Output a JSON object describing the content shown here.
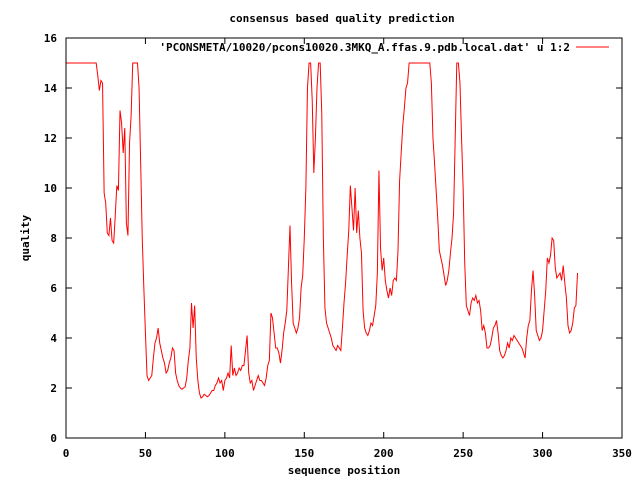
{
  "chart_data": {
    "type": "line",
    "title": "consensus based quality prediction",
    "xlabel": "sequence position",
    "ylabel": "quality",
    "xlim": [
      0,
      350
    ],
    "ylim": [
      0,
      16
    ],
    "xticks": [
      0,
      50,
      100,
      150,
      200,
      250,
      300,
      350
    ],
    "yticks": [
      0,
      2,
      4,
      6,
      8,
      10,
      12,
      14,
      16
    ],
    "grid": false,
    "legend_position": "top-right",
    "series": [
      {
        "name": "'PCONSMETA/10020/pcons10020.3MKQ_A.ffas.9.pdb.local.dat' u 1:2",
        "color": "#ff0000",
        "points": [
          [
            0,
            15
          ],
          [
            5,
            15
          ],
          [
            10,
            15
          ],
          [
            15,
            15
          ],
          [
            18,
            15
          ],
          [
            19,
            15
          ],
          [
            20,
            14.5
          ],
          [
            21,
            13.9
          ],
          [
            22,
            14.3
          ],
          [
            23,
            14.2
          ],
          [
            24,
            9.8
          ],
          [
            25,
            9.4
          ],
          [
            26,
            8.2
          ],
          [
            27,
            8.1
          ],
          [
            28,
            8.8
          ],
          [
            29,
            7.9
          ],
          [
            30,
            7.8
          ],
          [
            31,
            8.9
          ],
          [
            32,
            10.1
          ],
          [
            33,
            9.9
          ],
          [
            34,
            13.1
          ],
          [
            35,
            12.6
          ],
          [
            36,
            11.4
          ],
          [
            37,
            12.4
          ],
          [
            38,
            8.6
          ],
          [
            39,
            8.1
          ],
          [
            40,
            11.8
          ],
          [
            41,
            12.9
          ],
          [
            42,
            15
          ],
          [
            43,
            15
          ],
          [
            44,
            15
          ],
          [
            45,
            15
          ],
          [
            46,
            14
          ],
          [
            47,
            11
          ],
          [
            48,
            8
          ],
          [
            49,
            6
          ],
          [
            50,
            4.2
          ],
          [
            51,
            2.5
          ],
          [
            52,
            2.3
          ],
          [
            53,
            2.4
          ],
          [
            54,
            2.5
          ],
          [
            55,
            3.2
          ],
          [
            56,
            3.8
          ],
          [
            57,
            4
          ],
          [
            58,
            4.4
          ],
          [
            59,
            3.8
          ],
          [
            60,
            3.5
          ],
          [
            61,
            3.2
          ],
          [
            62,
            3
          ],
          [
            63,
            2.6
          ],
          [
            64,
            2.7
          ],
          [
            65,
            3
          ],
          [
            66,
            3.2
          ],
          [
            67,
            3.6
          ],
          [
            68,
            3.5
          ],
          [
            69,
            2.6
          ],
          [
            70,
            2.3
          ],
          [
            71,
            2.1
          ],
          [
            72,
            2
          ],
          [
            73,
            1.95
          ],
          [
            74,
            2
          ],
          [
            75,
            2.05
          ],
          [
            76,
            2.4
          ],
          [
            77,
            3.1
          ],
          [
            78,
            3.6
          ],
          [
            79,
            5.4
          ],
          [
            80,
            4.4
          ],
          [
            81,
            5.3
          ],
          [
            82,
            3.2
          ],
          [
            83,
            2.3
          ],
          [
            84,
            1.8
          ],
          [
            85,
            1.6
          ],
          [
            86,
            1.65
          ],
          [
            87,
            1.75
          ],
          [
            88,
            1.7
          ],
          [
            89,
            1.65
          ],
          [
            90,
            1.7
          ],
          [
            91,
            1.8
          ],
          [
            92,
            1.9
          ],
          [
            93,
            1.9
          ],
          [
            94,
            2.1
          ],
          [
            95,
            2.2
          ],
          [
            96,
            2.4
          ],
          [
            97,
            2.2
          ],
          [
            98,
            2.3
          ],
          [
            99,
            1.9
          ],
          [
            100,
            2.3
          ],
          [
            101,
            2.4
          ],
          [
            102,
            2.6
          ],
          [
            103,
            2.4
          ],
          [
            104,
            3.7
          ],
          [
            105,
            2.5
          ],
          [
            106,
            2.8
          ],
          [
            107,
            2.5
          ],
          [
            108,
            2.6
          ],
          [
            109,
            2.8
          ],
          [
            110,
            2.7
          ],
          [
            111,
            2.9
          ],
          [
            112,
            2.9
          ],
          [
            113,
            3.5
          ],
          [
            114,
            4.1
          ],
          [
            115,
            2.6
          ],
          [
            116,
            2.2
          ],
          [
            117,
            2.3
          ],
          [
            118,
            1.9
          ],
          [
            119,
            2.1
          ],
          [
            120,
            2.3
          ],
          [
            121,
            2.5
          ],
          [
            122,
            2.3
          ],
          [
            123,
            2.3
          ],
          [
            124,
            2.2
          ],
          [
            125,
            2.1
          ],
          [
            126,
            2.4
          ],
          [
            127,
            2.9
          ],
          [
            128,
            3.1
          ],
          [
            129,
            5
          ],
          [
            130,
            4.8
          ],
          [
            131,
            4.2
          ],
          [
            132,
            3.6
          ],
          [
            133,
            3.6
          ],
          [
            134,
            3.4
          ],
          [
            135,
            3
          ],
          [
            136,
            3.5
          ],
          [
            137,
            4.2
          ],
          [
            138,
            4.6
          ],
          [
            139,
            5.1
          ],
          [
            140,
            6.8
          ],
          [
            141,
            8.5
          ],
          [
            142,
            6.2
          ],
          [
            143,
            4.6
          ],
          [
            144,
            4.4
          ],
          [
            145,
            4.2
          ],
          [
            146,
            4.4
          ],
          [
            147,
            4.8
          ],
          [
            148,
            6
          ],
          [
            149,
            6.5
          ],
          [
            150,
            8
          ],
          [
            151,
            10
          ],
          [
            152,
            14
          ],
          [
            153,
            15
          ],
          [
            154,
            15
          ],
          [
            155,
            13.5
          ],
          [
            156,
            10.6
          ],
          [
            157,
            12
          ],
          [
            158,
            14
          ],
          [
            159,
            15
          ],
          [
            160,
            15
          ],
          [
            161,
            13
          ],
          [
            162,
            8
          ],
          [
            163,
            5.2
          ],
          [
            164,
            4.6
          ],
          [
            165,
            4.4
          ],
          [
            166,
            4.2
          ],
          [
            167,
            4
          ],
          [
            168,
            3.7
          ],
          [
            169,
            3.6
          ],
          [
            170,
            3.5
          ],
          [
            171,
            3.7
          ],
          [
            172,
            3.6
          ],
          [
            173,
            3.5
          ],
          [
            174,
            4.4
          ],
          [
            175,
            5.4
          ],
          [
            176,
            6.2
          ],
          [
            177,
            7.3
          ],
          [
            178,
            8.3
          ],
          [
            179,
            10.1
          ],
          [
            180,
            9.2
          ],
          [
            181,
            8.3
          ],
          [
            182,
            10
          ],
          [
            183,
            8.2
          ],
          [
            184,
            9.1
          ],
          [
            185,
            8
          ],
          [
            186,
            7.4
          ],
          [
            187,
            5.1
          ],
          [
            188,
            4.4
          ],
          [
            189,
            4.2
          ],
          [
            190,
            4.1
          ],
          [
            191,
            4.3
          ],
          [
            192,
            4.6
          ],
          [
            193,
            4.5
          ],
          [
            194,
            4.9
          ],
          [
            195,
            5.3
          ],
          [
            196,
            6.6
          ],
          [
            197,
            10.7
          ],
          [
            198,
            7.6
          ],
          [
            199,
            6.7
          ],
          [
            200,
            7.2
          ],
          [
            201,
            6.3
          ],
          [
            202,
            5.9
          ],
          [
            203,
            5.6
          ],
          [
            204,
            6
          ],
          [
            205,
            5.7
          ],
          [
            206,
            6.3
          ],
          [
            207,
            6.4
          ],
          [
            208,
            6.3
          ],
          [
            209,
            7.5
          ],
          [
            210,
            10.3
          ],
          [
            211,
            11.4
          ],
          [
            212,
            12.5
          ],
          [
            213,
            13.2
          ],
          [
            214,
            14
          ],
          [
            215,
            14.2
          ],
          [
            216,
            15
          ],
          [
            217,
            15
          ],
          [
            220,
            15
          ],
          [
            225,
            15
          ],
          [
            229,
            15
          ],
          [
            230,
            14.2
          ],
          [
            231,
            12
          ],
          [
            232,
            11
          ],
          [
            233,
            9.9
          ],
          [
            234,
            8.8
          ],
          [
            235,
            7.5
          ],
          [
            236,
            7.2
          ],
          [
            237,
            6.9
          ],
          [
            238,
            6.5
          ],
          [
            239,
            6.1
          ],
          [
            240,
            6.3
          ],
          [
            241,
            6.7
          ],
          [
            242,
            7.4
          ],
          [
            243,
            8
          ],
          [
            244,
            9
          ],
          [
            245,
            12
          ],
          [
            246,
            15
          ],
          [
            247,
            15
          ],
          [
            248,
            14.2
          ],
          [
            249,
            12
          ],
          [
            250,
            10
          ],
          [
            251,
            7
          ],
          [
            252,
            5.3
          ],
          [
            253,
            5.1
          ],
          [
            254,
            4.9
          ],
          [
            255,
            5.4
          ],
          [
            256,
            5.6
          ],
          [
            257,
            5.5
          ],
          [
            258,
            5.7
          ],
          [
            259,
            5.4
          ],
          [
            260,
            5.5
          ],
          [
            261,
            5.1
          ],
          [
            262,
            4.3
          ],
          [
            263,
            4.5
          ],
          [
            264,
            4.2
          ],
          [
            265,
            3.6
          ],
          [
            266,
            3.6
          ],
          [
            267,
            3.7
          ],
          [
            268,
            4
          ],
          [
            269,
            4.4
          ],
          [
            270,
            4.5
          ],
          [
            271,
            4.7
          ],
          [
            272,
            4.2
          ],
          [
            273,
            3.5
          ],
          [
            274,
            3.3
          ],
          [
            275,
            3.2
          ],
          [
            276,
            3.3
          ],
          [
            277,
            3.5
          ],
          [
            278,
            3.8
          ],
          [
            279,
            3.6
          ],
          [
            280,
            4
          ],
          [
            281,
            3.9
          ],
          [
            282,
            4.1
          ],
          [
            283,
            4
          ],
          [
            284,
            3.9
          ],
          [
            285,
            3.8
          ],
          [
            286,
            3.7
          ],
          [
            287,
            3.6
          ],
          [
            288,
            3.4
          ],
          [
            289,
            3.2
          ],
          [
            290,
            4
          ],
          [
            291,
            4.5
          ],
          [
            292,
            4.7
          ],
          [
            293,
            5.9
          ],
          [
            294,
            6.7
          ],
          [
            295,
            5.7
          ],
          [
            296,
            4.3
          ],
          [
            297,
            4.1
          ],
          [
            298,
            3.9
          ],
          [
            299,
            4
          ],
          [
            300,
            4.3
          ],
          [
            301,
            5.1
          ],
          [
            302,
            5.9
          ],
          [
            303,
            7.2
          ],
          [
            304,
            7
          ],
          [
            305,
            7.3
          ],
          [
            306,
            8
          ],
          [
            307,
            7.9
          ],
          [
            308,
            6.8
          ],
          [
            309,
            6.4
          ],
          [
            310,
            6.5
          ],
          [
            311,
            6.6
          ],
          [
            312,
            6.3
          ],
          [
            313,
            6.9
          ],
          [
            314,
            6.2
          ],
          [
            315,
            5.6
          ],
          [
            316,
            4.5
          ],
          [
            317,
            4.2
          ],
          [
            318,
            4.3
          ],
          [
            319,
            4.6
          ],
          [
            320,
            5.2
          ],
          [
            321,
            5.3
          ],
          [
            322,
            6.6
          ]
        ]
      }
    ]
  }
}
